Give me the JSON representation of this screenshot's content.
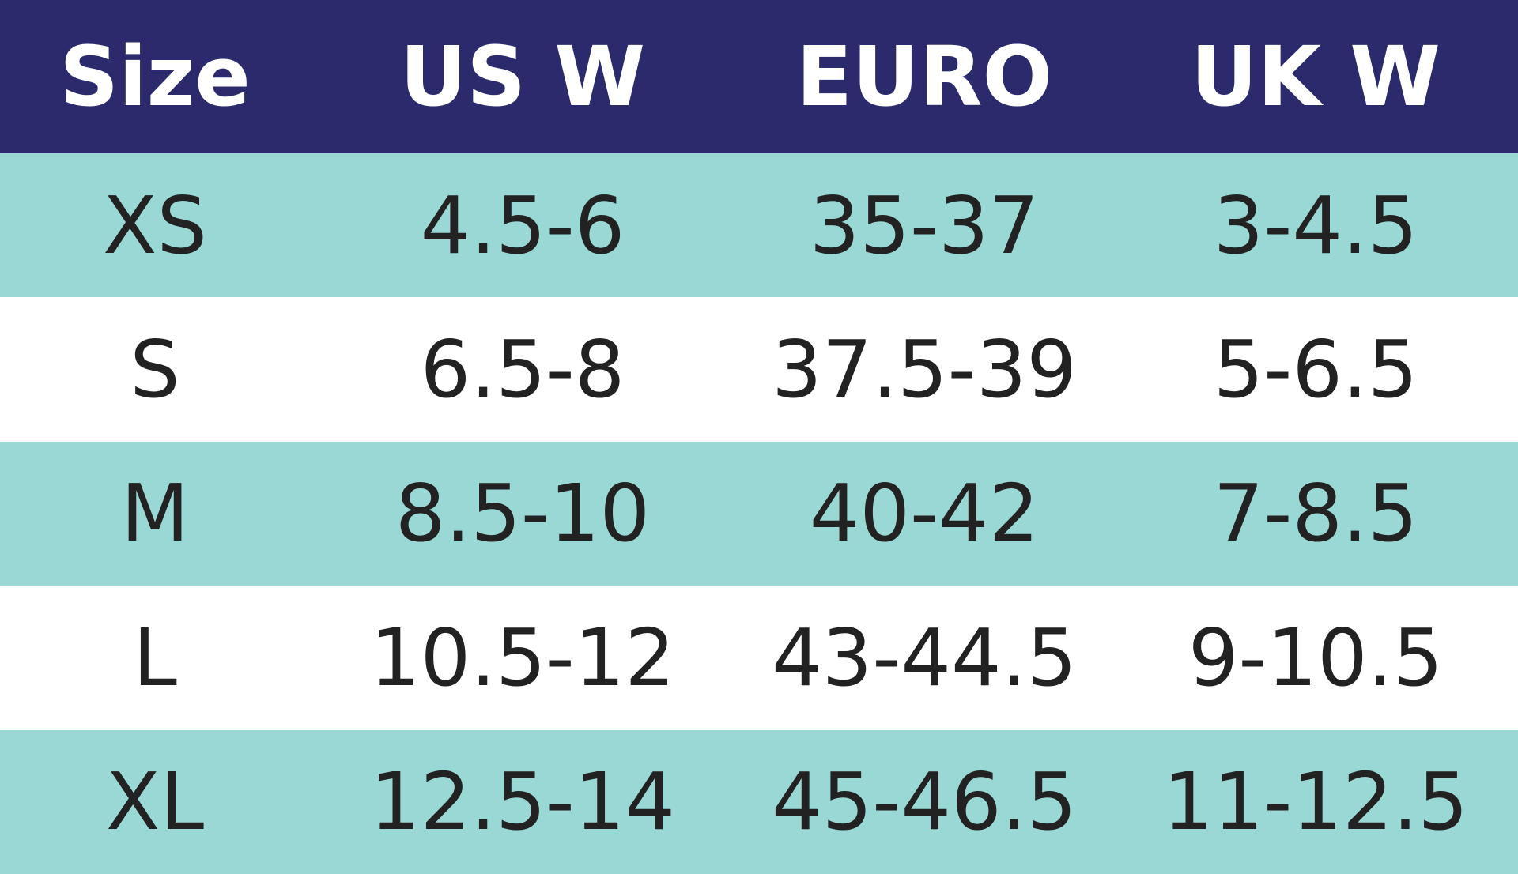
{
  "table": {
    "columns": [
      "Size",
      "US W",
      "EURO",
      "UK W"
    ],
    "rows": [
      [
        "XS",
        "4.5-6",
        "35-37",
        "3-4.5"
      ],
      [
        "S",
        "6.5-8",
        "37.5-39",
        "5-6.5"
      ],
      [
        "M",
        "8.5-10",
        "40-42",
        "7-8.5"
      ],
      [
        "L",
        "10.5-12",
        "43-44.5",
        "9-10.5"
      ],
      [
        "XL",
        "12.5-14",
        "45-46.5",
        "11-12.5"
      ]
    ]
  }
}
